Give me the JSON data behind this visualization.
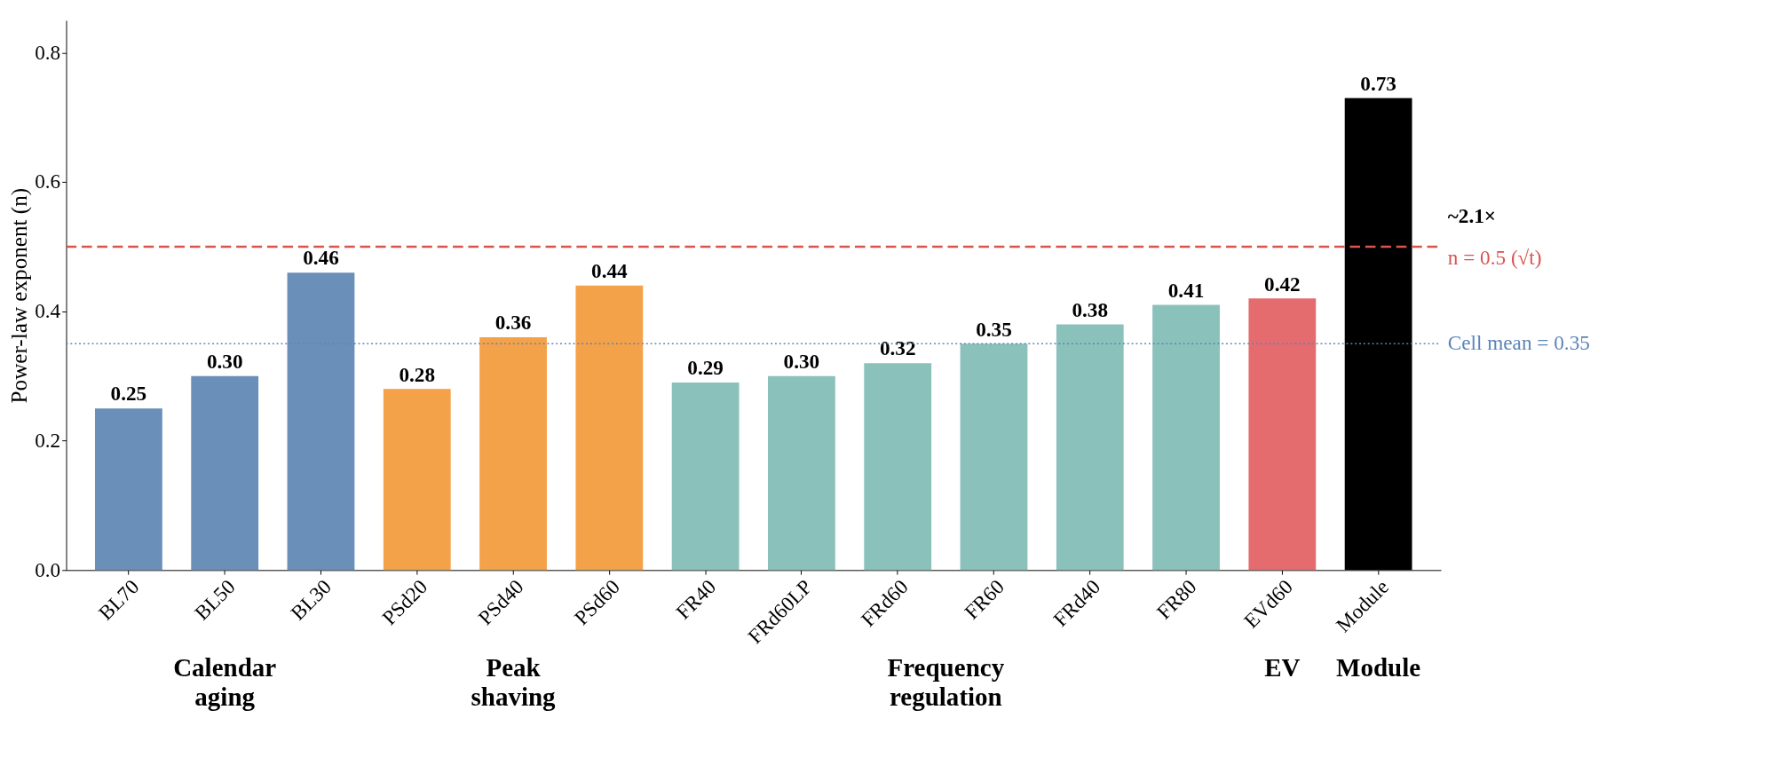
{
  "chart_data": {
    "type": "bar",
    "ylabel": "Power-law exponent (n)",
    "categories": [
      "BL70",
      "BL50",
      "BL30",
      "PSd20",
      "PSd40",
      "PSd60",
      "FR40",
      "FRd60LP",
      "FRd60",
      "FR60",
      "FRd40",
      "FR80",
      "EVd60",
      "Module"
    ],
    "values": [
      0.25,
      0.3,
      0.46,
      0.28,
      0.36,
      0.44,
      0.29,
      0.3,
      0.32,
      0.35,
      0.38,
      0.41,
      0.42,
      0.73
    ],
    "colors": [
      "#6a8fb8",
      "#6a8fb8",
      "#6a8fb8",
      "#f4a24a",
      "#f4a24a",
      "#f4a24a",
      "#8bc1bb",
      "#8bc1bb",
      "#8bc1bb",
      "#8bc1bb",
      "#8bc1bb",
      "#8bc1bb",
      "#e46c6f",
      "#000000"
    ],
    "value_labels": [
      "0.25",
      "0.30",
      "0.46",
      "0.28",
      "0.36",
      "0.44",
      "0.29",
      "0.30",
      "0.32",
      "0.35",
      "0.38",
      "0.41",
      "0.42",
      "0.73"
    ],
    "ylim": [
      0,
      0.85
    ],
    "yticks": [
      {
        "value": 0,
        "label": "0.0"
      },
      0.2,
      0.4,
      0.6,
      0.8
    ],
    "grid": false,
    "ref_lines": [
      {
        "axis": "y",
        "value": 0.5,
        "label": "n = 0.5  (√t)",
        "color": "#d9534f",
        "line_style": "dashed"
      },
      {
        "axis": "y",
        "value": 0.35,
        "label": "Cell mean = 0.35",
        "color": "#5b84b8",
        "line_style": "dotted"
      }
    ],
    "annotations": [
      "Calendar aging",
      "Peak shaving",
      "Frequency regulation",
      "EV",
      "Module",
      "~2.1×"
    ]
  }
}
